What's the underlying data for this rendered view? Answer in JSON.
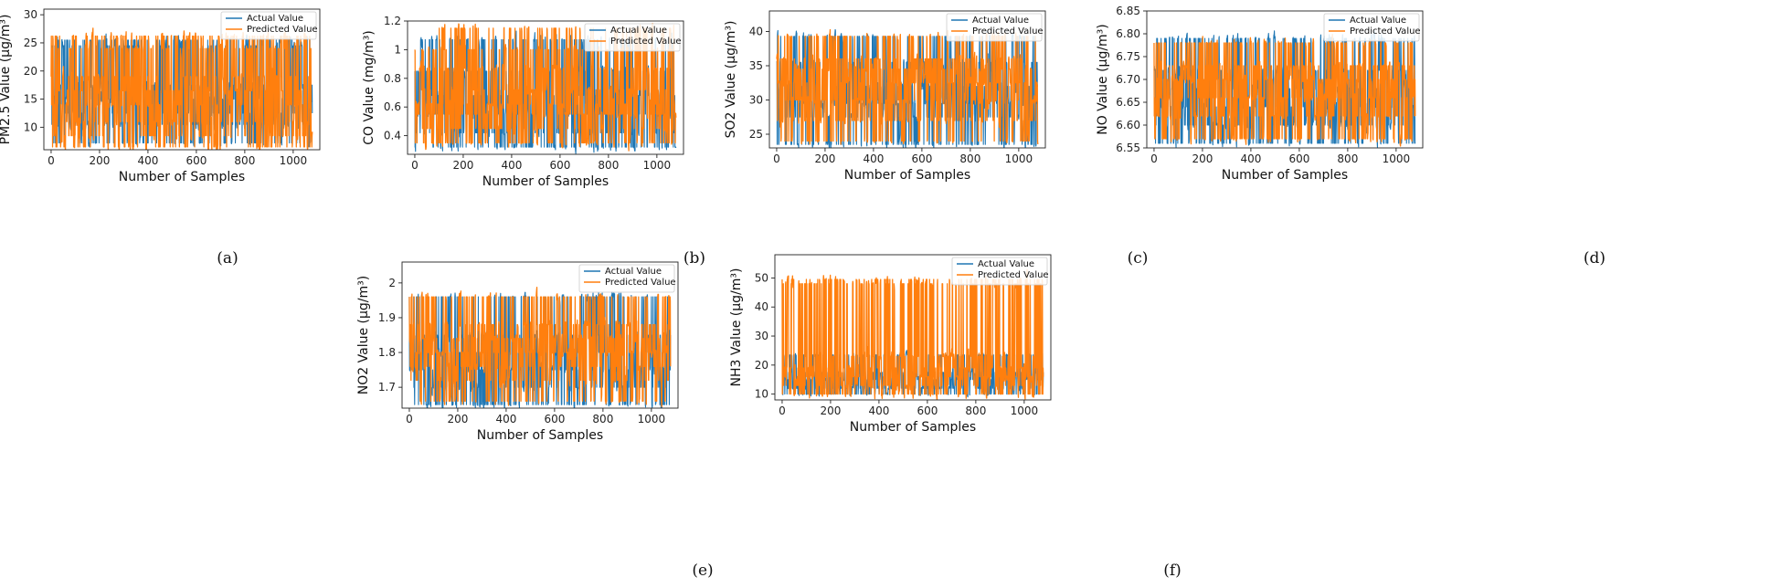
{
  "figure": {
    "panels": [
      "a",
      "b",
      "c",
      "d",
      "e",
      "f"
    ]
  },
  "chart_data": [
    {
      "id": "a",
      "caption": "(a)",
      "type": "line",
      "xlabel": "Number of Samples",
      "ylabel": "PM2.5 Value (µg/m³)",
      "xlim": [
        -30,
        1110
      ],
      "ylim": [
        6,
        31
      ],
      "xticks": [
        0,
        200,
        400,
        600,
        800,
        1000
      ],
      "yticks": [
        10,
        15,
        20,
        25,
        30
      ],
      "legend": {
        "position": "top-right",
        "entries": [
          "Actual Value",
          "Predicted Value"
        ]
      },
      "series": [
        {
          "name": "Actual Value",
          "color": "#1f77b4",
          "n_samples": 1080,
          "levels": [
            7.2,
            10.5,
            12.5,
            15.0,
            17.5,
            24.5,
            25.5
          ],
          "baseline": 15.5
        },
        {
          "name": "Predicted Value",
          "color": "#ff7f0e",
          "n_samples": 1080,
          "levels": [
            6.5,
            8.5,
            11.0,
            14.0,
            16.5,
            19.0,
            24.0,
            26.2
          ],
          "baseline": 15.5
        }
      ]
    },
    {
      "id": "b",
      "caption": "(b)",
      "type": "line",
      "xlabel": "Number of Samples",
      "ylabel": "CO Value (mg/m³)",
      "xlim": [
        -30,
        1110
      ],
      "ylim": [
        0.27,
        1.2
      ],
      "xticks": [
        0,
        200,
        400,
        600,
        800,
        1000
      ],
      "yticks": [
        0.4,
        0.6,
        0.8,
        1.0,
        1.2
      ],
      "legend": {
        "position": "top-right",
        "entries": [
          "Actual Value",
          "Predicted Value"
        ]
      },
      "series": [
        {
          "name": "Actual Value",
          "color": "#1f77b4",
          "n_samples": 1080,
          "levels": [
            0.32,
            0.42,
            0.55,
            0.68,
            0.85,
            1.07
          ],
          "baseline": 0.58
        },
        {
          "name": "Predicted Value",
          "color": "#ff7f0e",
          "n_samples": 1080,
          "levels": [
            0.35,
            0.45,
            0.55,
            0.62,
            0.72,
            0.87,
            1.0,
            1.15
          ],
          "baseline": 0.58
        }
      ]
    },
    {
      "id": "c",
      "caption": "(c)",
      "type": "line",
      "xlabel": "Number of Samples",
      "ylabel": "SO2 Value (µg/m³)",
      "xlim": [
        -30,
        1110
      ],
      "ylim": [
        23,
        43
      ],
      "xticks": [
        0,
        200,
        400,
        600,
        800,
        1000
      ],
      "yticks": [
        25,
        30,
        35,
        40
      ],
      "legend": {
        "position": "top-right",
        "entries": [
          "Actual Value",
          "Predicted Value"
        ]
      },
      "series": [
        {
          "name": "Actual Value",
          "color": "#1f77b4",
          "n_samples": 1080,
          "levels": [
            23.5,
            27.5,
            29.5,
            32.0,
            35.5,
            39.3
          ],
          "baseline": 31.0
        },
        {
          "name": "Predicted Value",
          "color": "#ff7f0e",
          "n_samples": 1080,
          "levels": [
            24.0,
            27.0,
            30.0,
            32.5,
            34.5,
            36.0,
            39.3
          ],
          "baseline": 31.0
        }
      ]
    },
    {
      "id": "d",
      "caption": "(d)",
      "type": "line",
      "xlabel": "Number of Samples",
      "ylabel": "NO Value (µg/m³)",
      "xlim": [
        -30,
        1110
      ],
      "ylim": [
        6.55,
        6.85
      ],
      "xticks": [
        0,
        200,
        400,
        600,
        800,
        1000
      ],
      "yticks": [
        6.55,
        6.6,
        6.65,
        6.7,
        6.75,
        6.8,
        6.85
      ],
      "ytick_labels": [
        "6.55",
        "6.60",
        "6.65",
        "6.70",
        "6.75",
        "6.80",
        "6.85"
      ],
      "legend": {
        "position": "top-right",
        "entries": [
          "Actual Value",
          "Predicted Value"
        ]
      },
      "series": [
        {
          "name": "Actual Value",
          "color": "#1f77b4",
          "n_samples": 1080,
          "levels": [
            6.56,
            6.6,
            6.64,
            6.68,
            6.72,
            6.79
          ],
          "baseline": 6.68
        },
        {
          "name": "Predicted Value",
          "color": "#ff7f0e",
          "n_samples": 1080,
          "levels": [
            6.57,
            6.62,
            6.66,
            6.7,
            6.73,
            6.78
          ],
          "baseline": 6.68
        }
      ]
    },
    {
      "id": "e",
      "caption": "(e)",
      "type": "line",
      "xlabel": "Number of Samples",
      "ylabel": "NO2 Value (µg/m³)",
      "xlim": [
        -30,
        1110
      ],
      "ylim": [
        1.64,
        2.06
      ],
      "xticks": [
        0,
        200,
        400,
        600,
        800,
        1000
      ],
      "yticks": [
        1.7,
        1.8,
        1.9,
        2.0
      ],
      "legend": {
        "position": "top-right",
        "entries": [
          "Actual Value",
          "Predicted Value"
        ]
      },
      "series": [
        {
          "name": "Actual Value",
          "color": "#1f77b4",
          "n_samples": 1080,
          "levels": [
            1.65,
            1.7,
            1.75,
            1.8,
            1.85,
            1.96
          ],
          "baseline": 1.8
        },
        {
          "name": "Predicted Value",
          "color": "#ff7f0e",
          "n_samples": 1080,
          "levels": [
            1.66,
            1.72,
            1.76,
            1.8,
            1.84,
            1.88,
            1.96
          ],
          "baseline": 1.8
        }
      ]
    },
    {
      "id": "f",
      "caption": "(f)",
      "type": "line",
      "xlabel": "Number of Samples",
      "ylabel": "NH3 Value (µg/m³)",
      "xlim": [
        -30,
        1110
      ],
      "ylim": [
        8,
        58
      ],
      "xticks": [
        0,
        200,
        400,
        600,
        800,
        1000
      ],
      "yticks": [
        10,
        20,
        30,
        40,
        50
      ],
      "legend": {
        "position": "top-right",
        "entries": [
          "Actual Value",
          "Predicted Value"
        ]
      },
      "series": [
        {
          "name": "Actual Value",
          "color": "#1f77b4",
          "n_samples": 1080,
          "levels": [
            10.0,
            12.0,
            15.0,
            17.5,
            23.5
          ],
          "baseline": 16.0
        },
        {
          "name": "Predicted Value",
          "color": "#ff7f0e",
          "n_samples": 1080,
          "levels": [
            10.0,
            13.0,
            16.0,
            19.0,
            23.0,
            48.0,
            49.5
          ],
          "baseline": 16.0
        }
      ]
    }
  ]
}
